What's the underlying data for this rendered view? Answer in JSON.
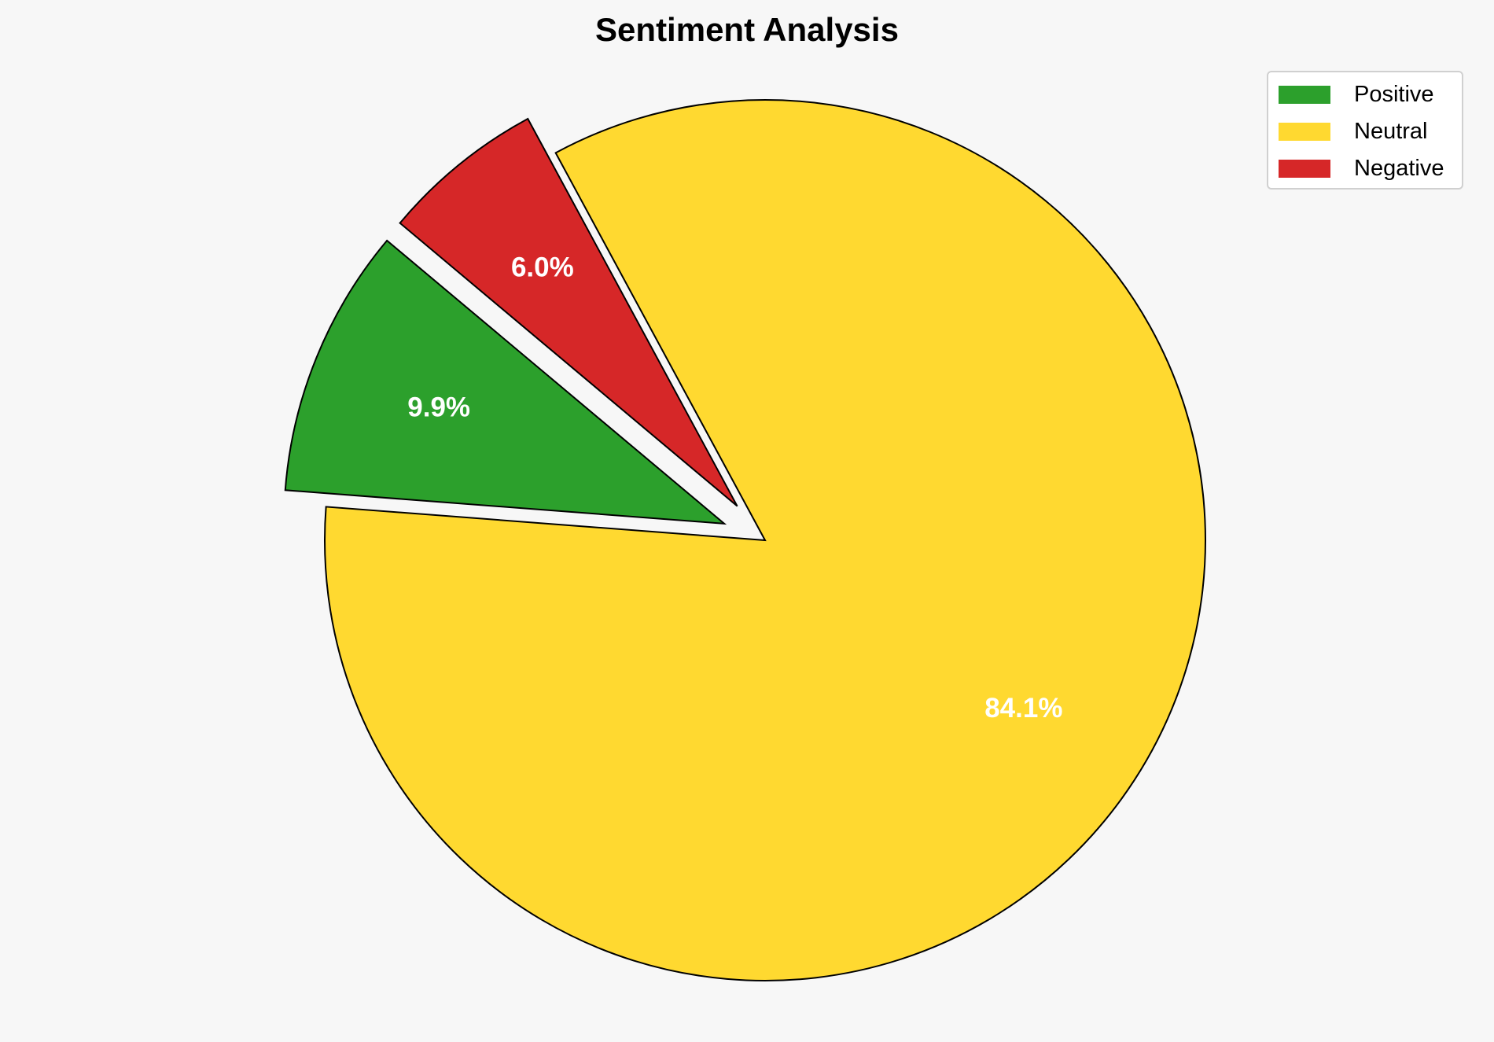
{
  "chart_data": {
    "type": "pie",
    "title": "Sentiment Analysis",
    "categories": [
      "Positive",
      "Neutral",
      "Negative"
    ],
    "values": [
      9.9,
      84.1,
      6.0
    ],
    "data_labels": [
      "9.9%",
      "84.1%",
      "6.0%"
    ],
    "colors": [
      "#2ca02c",
      "#ffd930",
      "#d62728"
    ],
    "exploded": [
      true,
      false,
      true
    ],
    "start_angle_deg": 140,
    "direction": "counterclockwise",
    "legend": {
      "placement": "top-right",
      "entries": [
        "Positive",
        "Neutral",
        "Negative"
      ]
    }
  }
}
